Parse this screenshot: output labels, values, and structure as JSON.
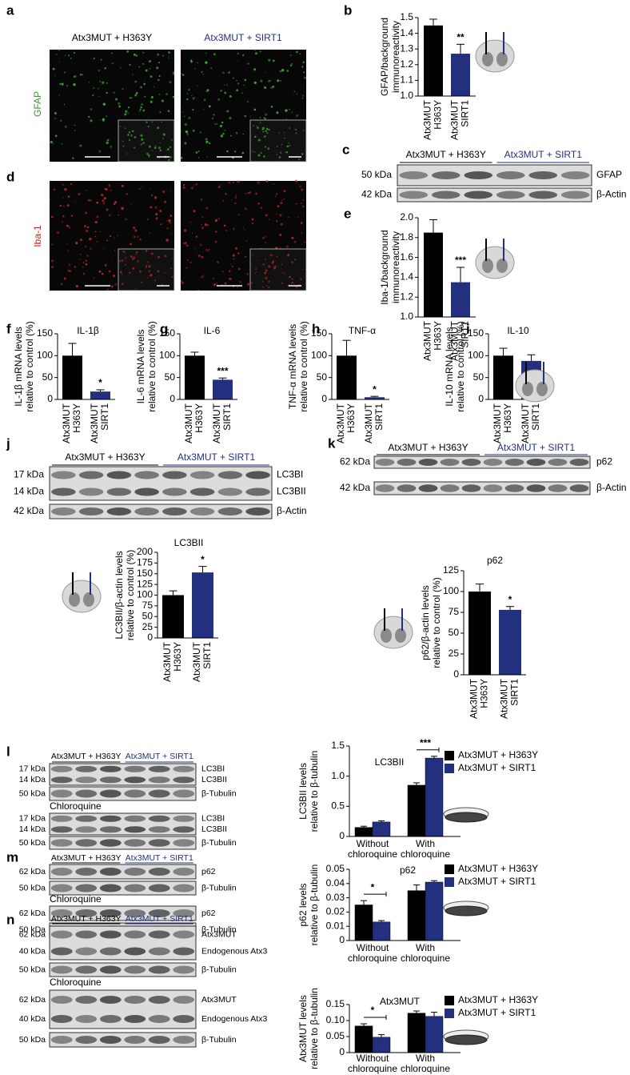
{
  "images": {
    "letters": [
      "a",
      "d"
    ],
    "groups": [
      "Atx3MUT + H363Y",
      "Atx3MUT + SIRT1"
    ],
    "stains": [
      "GFAP",
      "Iba-1"
    ]
  },
  "blots": [
    {
      "letter": "c",
      "groups": [
        "Atx3MUT + H363Y",
        "Atx3MUT + SIRT1"
      ],
      "sections": [
        {
          "rows": [
            {
              "sizes": [
                "50 kDa"
              ],
              "labels": [
                "GFAP"
              ]
            },
            {
              "sizes": [
                "42 kDa"
              ],
              "labels": [
                "β-Actin"
              ]
            }
          ]
        }
      ]
    },
    {
      "letter": "j",
      "groups": [
        "Atx3MUT + H363Y",
        "Atx3MUT + SIRT1"
      ],
      "sections": [
        {
          "rows": [
            {
              "sizes": [
                "17 kDa",
                "14 kDa"
              ],
              "labels": [
                "LC3BI",
                "LC3BII"
              ]
            },
            {
              "sizes": [
                "42 kDa"
              ],
              "labels": [
                "β-Actin"
              ]
            }
          ]
        }
      ]
    },
    {
      "letter": "k",
      "groups": [
        "Atx3MUT + H363Y",
        "Atx3MUT + SIRT1"
      ],
      "sections": [
        {
          "rows": [
            {
              "sizes": [
                "62 kDa"
              ],
              "labels": [
                "p62"
              ]
            },
            {
              "sizes": [
                "42 kDa"
              ],
              "labels": [
                "β-Actin"
              ]
            }
          ]
        }
      ]
    },
    {
      "letter": "l",
      "groups": [
        "Atx3MUT + H363Y",
        "Atx3MUT + SIRT1"
      ],
      "sections": [
        {
          "rows": [
            {
              "sizes": [
                "17 kDa",
                "14 kDa"
              ],
              "labels": [
                "LC3BI",
                "LC3BII"
              ]
            },
            {
              "sizes": [
                "50 kDa"
              ],
              "labels": [
                "β-Tubulin"
              ]
            }
          ]
        },
        {
          "title": "Chloroquine",
          "rows": [
            {
              "sizes": [
                "17 kDa",
                "14 kDa"
              ],
              "labels": [
                "LC3BI",
                "LC3BII"
              ]
            },
            {
              "sizes": [
                "50 kDa"
              ],
              "labels": [
                "β-Tubulin"
              ]
            }
          ]
        }
      ]
    },
    {
      "letter": "m",
      "groups": [
        "Atx3MUT + H363Y",
        "Atx3MUT + SIRT1"
      ],
      "sections": [
        {
          "rows": [
            {
              "sizes": [
                "62 kDa"
              ],
              "labels": [
                "p62"
              ]
            },
            {
              "sizes": [
                "50 kDa"
              ],
              "labels": [
                "β-Tubulin"
              ]
            }
          ]
        },
        {
          "title": "Chloroquine",
          "rows": [
            {
              "sizes": [
                "62 kDa"
              ],
              "labels": [
                "p62"
              ]
            },
            {
              "sizes": [
                "50 kDa"
              ],
              "labels": [
                "β-Tubulin"
              ]
            }
          ]
        }
      ]
    },
    {
      "letter": "n",
      "groups": [
        "Atx3MUT + H363Y",
        "Atx3MUT + SIRT1"
      ],
      "sections": [
        {
          "rows": [
            {
              "sizes": [
                "62 kDa",
                "40 kDa"
              ],
              "labels": [
                "Atx3MUT",
                "Endogenous Atx3"
              ]
            },
            {
              "sizes": [
                "50 kDa"
              ],
              "labels": [
                "β-Tubulin"
              ]
            }
          ]
        },
        {
          "title": "Chloroquine",
          "rows": [
            {
              "sizes": [
                "62 kDa",
                "40 kDa"
              ],
              "labels": [
                "Atx3MUT",
                "Endogenous Atx3"
              ]
            },
            {
              "sizes": [
                "50 kDa"
              ],
              "labels": [
                "β-Tubulin"
              ]
            }
          ]
        }
      ]
    }
  ],
  "chart_data": [
    {
      "type": "bar",
      "letter": "b",
      "ylabel": [
        "GFAP/background",
        "immunoreactivity"
      ],
      "categories": [
        [
          "Atx3MUT",
          "H363Y"
        ],
        [
          "Atx3MUT",
          "SIRT1"
        ]
      ],
      "values": [
        1.45,
        1.27
      ],
      "errors": [
        0.04,
        0.06
      ],
      "colors": [
        "#000000",
        "#22307f"
      ],
      "significance": [
        null,
        "**"
      ],
      "ylim": [
        1.0,
        1.5
      ],
      "yticks": [
        {
          "value": 1.0,
          "label": "1.0"
        },
        1.1,
        1.2,
        1.3,
        1.4,
        {
          "value": 1.5,
          "label": "1.5"
        }
      ]
    },
    {
      "type": "bar",
      "letter": "e",
      "ylabel": [
        "Iba-1/background",
        "immunoreactivity"
      ],
      "categories": [
        [
          "Atx3MUT",
          "H363Y"
        ],
        [
          "Atx3MUT",
          "SIRT1"
        ]
      ],
      "values": [
        1.85,
        1.35
      ],
      "errors": [
        0.13,
        0.15
      ],
      "colors": [
        "#000000",
        "#22307f"
      ],
      "significance": [
        null,
        "***"
      ],
      "ylim": [
        1.0,
        2.0
      ],
      "yticks": [
        {
          "value": 1.0,
          "label": "1.0"
        },
        1.2,
        1.4,
        1.6,
        1.8,
        {
          "value": 2.0,
          "label": "2.0"
        }
      ]
    },
    {
      "type": "bar",
      "letter": "f",
      "title": "IL-1β",
      "ylabel": [
        "IL-1β mRNA levels",
        "relative to control (%)"
      ],
      "categories": [
        [
          "Atx3MUT",
          "H363Y"
        ],
        [
          "Atx3MUT",
          "SIRT1"
        ]
      ],
      "values": [
        100,
        18
      ],
      "errors": [
        28,
        4
      ],
      "colors": [
        "#000000",
        "#22307f"
      ],
      "significance": [
        null,
        "*"
      ],
      "ylim": [
        0,
        150
      ],
      "yticks": [
        0,
        50,
        100,
        150
      ]
    },
    {
      "type": "bar",
      "letter": "g",
      "title": "IL-6",
      "ylabel": [
        "IL-6 mRNA levels",
        "relative to control (%)"
      ],
      "categories": [
        [
          "Atx3MUT",
          "H363Y"
        ],
        [
          "Atx3MUT",
          "SIRT1"
        ]
      ],
      "values": [
        100,
        45
      ],
      "errors": [
        8,
        4
      ],
      "colors": [
        "#000000",
        "#22307f"
      ],
      "significance": [
        null,
        "***"
      ],
      "ylim": [
        0,
        150
      ],
      "yticks": [
        0,
        50,
        100,
        150
      ]
    },
    {
      "type": "bar",
      "letter": "h",
      "title": "TNF-α",
      "ylabel": [
        "TNF-α mRNA levels",
        "relative to control (%)"
      ],
      "categories": [
        [
          "Atx3MUT",
          "H363Y"
        ],
        [
          "Atx3MUT",
          "SIRT1"
        ]
      ],
      "values": [
        100,
        5
      ],
      "errors": [
        35,
        2
      ],
      "colors": [
        "#000000",
        "#22307f"
      ],
      "significance": [
        null,
        "*"
      ],
      "ylim": [
        0,
        150
      ],
      "yticks": [
        0,
        50,
        100,
        150
      ]
    },
    {
      "type": "bar",
      "letter": "i",
      "title": "IL-10",
      "ylabel": [
        "IL-10 mRNA levels",
        "relative to control (%)"
      ],
      "categories": [
        [
          "Atx3MUT",
          "H363Y"
        ],
        [
          "Atx3MUT",
          "SIRT1"
        ]
      ],
      "values": [
        100,
        88
      ],
      "errors": [
        17,
        14
      ],
      "colors": [
        "#000000",
        "#22307f"
      ],
      "ylim": [
        0,
        150
      ],
      "yticks": [
        0,
        50,
        100,
        150
      ]
    },
    {
      "type": "bar",
      "title": "LC3BII",
      "ylabel": [
        "LC3BII/β-actin levels",
        "relative to control (%)"
      ],
      "categories": [
        [
          "Atx3MUT",
          "H363Y"
        ],
        [
          "Atx3MUT",
          "SIRT1"
        ]
      ],
      "values": [
        100,
        153
      ],
      "errors": [
        10,
        14
      ],
      "colors": [
        "#000000",
        "#22307f"
      ],
      "significance": [
        null,
        "*"
      ],
      "ylim": [
        0,
        200
      ],
      "yticks": [
        0,
        25,
        50,
        75,
        100,
        125,
        150,
        175,
        200
      ]
    },
    {
      "type": "bar",
      "title": "p62",
      "ylabel": [
        "p62/β-actin levels",
        "relative to control (%)"
      ],
      "categories": [
        [
          "Atx3MUT",
          "H363Y"
        ],
        [
          "Atx3MUT",
          "SIRT1"
        ]
      ],
      "values": [
        100,
        78
      ],
      "errors": [
        9,
        4
      ],
      "colors": [
        "#000000",
        "#22307f"
      ],
      "significance": [
        null,
        "*"
      ],
      "ylim": [
        0,
        125
      ],
      "yticks": [
        0,
        25,
        50,
        75,
        100,
        125
      ]
    },
    {
      "type": "grouped_bar",
      "title": "LC3BII",
      "ylabel": [
        "LC3BII levels",
        "relative to β-tubulin"
      ],
      "categories": [
        [
          "Without",
          "chloroquine"
        ],
        [
          "With",
          "chloroquine"
        ]
      ],
      "series": [
        {
          "name": "Atx3MUT + H363Y",
          "color": "#000000",
          "values": [
            0.15,
            0.85
          ],
          "errors": [
            0.02,
            0.04
          ]
        },
        {
          "name": "Atx3MUT + SIRT1",
          "color": "#22307f",
          "values": [
            0.24,
            1.3
          ],
          "errors": [
            0.02,
            0.03
          ]
        }
      ],
      "significance": [
        null,
        "***"
      ],
      "ylim": [
        0,
        1.5
      ],
      "yticks": [
        0,
        0.5,
        {
          "value": 1.0,
          "label": "1.0"
        },
        1.5
      ]
    },
    {
      "type": "grouped_bar",
      "title": "p62",
      "ylabel": [
        "p62 levels",
        "relative to β-tubulin"
      ],
      "categories": [
        [
          "Without",
          "chloroquine"
        ],
        [
          "With",
          "chloroquine"
        ]
      ],
      "series": [
        {
          "name": "Atx3MUT + H363Y",
          "color": "#000000",
          "values": [
            0.025,
            0.035
          ],
          "errors": [
            0.003,
            0.004
          ]
        },
        {
          "name": "Atx3MUT + SIRT1",
          "color": "#22307f",
          "values": [
            0.013,
            0.041
          ],
          "errors": [
            0.001,
            0.001
          ]
        }
      ],
      "significance": [
        "*",
        null
      ],
      "ylim": [
        0,
        0.05
      ],
      "yticks": [
        0,
        0.01,
        0.02,
        0.03,
        0.04,
        0.05
      ]
    },
    {
      "type": "grouped_bar",
      "title": "Atx3MUT",
      "ylabel": [
        "Atx3MUT levels",
        "relative to β-tubulin"
      ],
      "categories": [
        [
          "Without",
          "chloroquine"
        ],
        [
          "With",
          "chloroquine"
        ]
      ],
      "series": [
        {
          "name": "Atx3MUT + H363Y",
          "color": "#000000",
          "values": [
            0.083,
            0.123
          ],
          "errors": [
            0.007,
            0.007
          ]
        },
        {
          "name": "Atx3MUT + SIRT1",
          "color": "#22307f",
          "values": [
            0.048,
            0.113
          ],
          "errors": [
            0.008,
            0.013
          ]
        }
      ],
      "significance": [
        "*",
        null
      ],
      "ylim": [
        0,
        0.15
      ],
      "yticks": [
        0,
        0.05,
        {
          "value": 0.1,
          "label": "0.10"
        },
        0.15
      ]
    }
  ]
}
